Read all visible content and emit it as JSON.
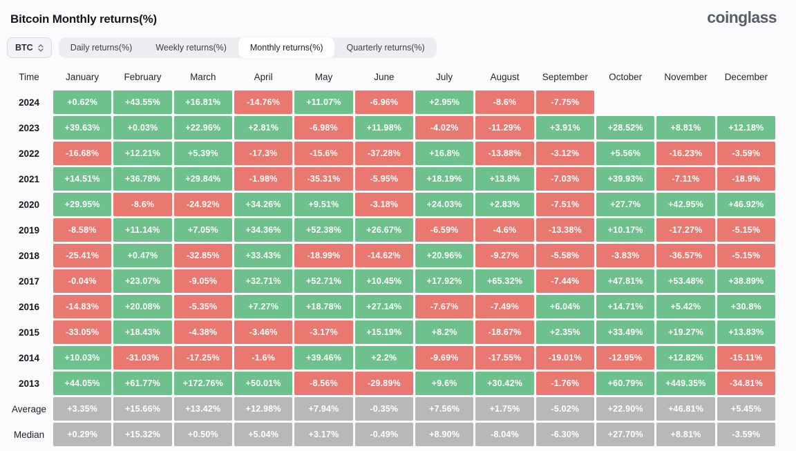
{
  "header": {
    "title": "Bitcoin Monthly returns(%)",
    "brand": "coinglass"
  },
  "controls": {
    "symbol_select": {
      "value": "BTC"
    },
    "tabs": [
      {
        "label": "Daily returns(%)",
        "active": false
      },
      {
        "label": "Weekly returns(%)",
        "active": false
      },
      {
        "label": "Monthly returns(%)",
        "active": true
      },
      {
        "label": "Quarterly returns(%)",
        "active": false
      }
    ]
  },
  "colors": {
    "positive": "#6ec18c",
    "negative": "#e97970",
    "neutral": "#b8b8b8"
  },
  "table": {
    "time_header": "Time"
  },
  "chart_data": {
    "type": "heatmap",
    "title": "Bitcoin Monthly returns(%)",
    "columns": [
      "January",
      "February",
      "March",
      "April",
      "May",
      "June",
      "July",
      "August",
      "September",
      "October",
      "November",
      "December"
    ],
    "rows": [
      {
        "label": "2024",
        "kind": "year",
        "values": [
          "+0.62%",
          "+43.55%",
          "+16.81%",
          "-14.76%",
          "+11.07%",
          "-6.96%",
          "+2.95%",
          "-8.6%",
          "-7.75%",
          null,
          null,
          null
        ]
      },
      {
        "label": "2023",
        "kind": "year",
        "values": [
          "+39.63%",
          "+0.03%",
          "+22.96%",
          "+2.81%",
          "-6.98%",
          "+11.98%",
          "-4.02%",
          "-11.29%",
          "+3.91%",
          "+28.52%",
          "+8.81%",
          "+12.18%"
        ]
      },
      {
        "label": "2022",
        "kind": "year",
        "values": [
          "-16.68%",
          "+12.21%",
          "+5.39%",
          "-17.3%",
          "-15.6%",
          "-37.28%",
          "+16.8%",
          "-13.88%",
          "-3.12%",
          "+5.56%",
          "-16.23%",
          "-3.59%"
        ]
      },
      {
        "label": "2021",
        "kind": "year",
        "values": [
          "+14.51%",
          "+36.78%",
          "+29.84%",
          "-1.98%",
          "-35.31%",
          "-5.95%",
          "+18.19%",
          "+13.8%",
          "-7.03%",
          "+39.93%",
          "-7.11%",
          "-18.9%"
        ]
      },
      {
        "label": "2020",
        "kind": "year",
        "values": [
          "+29.95%",
          "-8.6%",
          "-24.92%",
          "+34.26%",
          "+9.51%",
          "-3.18%",
          "+24.03%",
          "+2.83%",
          "-7.51%",
          "+27.7%",
          "+42.95%",
          "+46.92%"
        ]
      },
      {
        "label": "2019",
        "kind": "year",
        "values": [
          "-8.58%",
          "+11.14%",
          "+7.05%",
          "+34.36%",
          "+52.38%",
          "+26.67%",
          "-6.59%",
          "-4.6%",
          "-13.38%",
          "+10.17%",
          "-17.27%",
          "-5.15%"
        ]
      },
      {
        "label": "2018",
        "kind": "year",
        "values": [
          "-25.41%",
          "+0.47%",
          "-32.85%",
          "+33.43%",
          "-18.99%",
          "-14.62%",
          "+20.96%",
          "-9.27%",
          "-5.58%",
          "-3.83%",
          "-36.57%",
          "-5.15%"
        ]
      },
      {
        "label": "2017",
        "kind": "year",
        "values": [
          "-0.04%",
          "+23.07%",
          "-9.05%",
          "+32.71%",
          "+52.71%",
          "+10.45%",
          "+17.92%",
          "+65.32%",
          "-7.44%",
          "+47.81%",
          "+53.48%",
          "+38.89%"
        ]
      },
      {
        "label": "2016",
        "kind": "year",
        "values": [
          "-14.83%",
          "+20.08%",
          "-5.35%",
          "+7.27%",
          "+18.78%",
          "+27.14%",
          "-7.67%",
          "-7.49%",
          "+6.04%",
          "+14.71%",
          "+5.42%",
          "+30.8%"
        ]
      },
      {
        "label": "2015",
        "kind": "year",
        "values": [
          "-33.05%",
          "+18.43%",
          "-4.38%",
          "-3.46%",
          "-3.17%",
          "+15.19%",
          "+8.2%",
          "-18.67%",
          "+2.35%",
          "+33.49%",
          "+19.27%",
          "+13.83%"
        ]
      },
      {
        "label": "2014",
        "kind": "year",
        "values": [
          "+10.03%",
          "-31.03%",
          "-17.25%",
          "-1.6%",
          "+39.46%",
          "+2.2%",
          "-9.69%",
          "-17.55%",
          "-19.01%",
          "-12.95%",
          "+12.82%",
          "-15.11%"
        ]
      },
      {
        "label": "2013",
        "kind": "year",
        "values": [
          "+44.05%",
          "+61.77%",
          "+172.76%",
          "+50.01%",
          "-8.56%",
          "-29.89%",
          "+9.6%",
          "+30.42%",
          "-1.76%",
          "+60.79%",
          "+449.35%",
          "-34.81%"
        ]
      },
      {
        "label": "Average",
        "kind": "stat",
        "values": [
          "+3.35%",
          "+15.66%",
          "+13.42%",
          "+12.98%",
          "+7.94%",
          "-0.35%",
          "+7.56%",
          "+1.75%",
          "-5.02%",
          "+22.90%",
          "+46.81%",
          "+5.45%"
        ]
      },
      {
        "label": "Median",
        "kind": "stat",
        "values": [
          "+0.29%",
          "+15.32%",
          "+0.50%",
          "+5.04%",
          "+3.17%",
          "-0.49%",
          "+8.90%",
          "-8.04%",
          "-6.30%",
          "+27.70%",
          "+8.81%",
          "-3.59%"
        ]
      }
    ]
  }
}
